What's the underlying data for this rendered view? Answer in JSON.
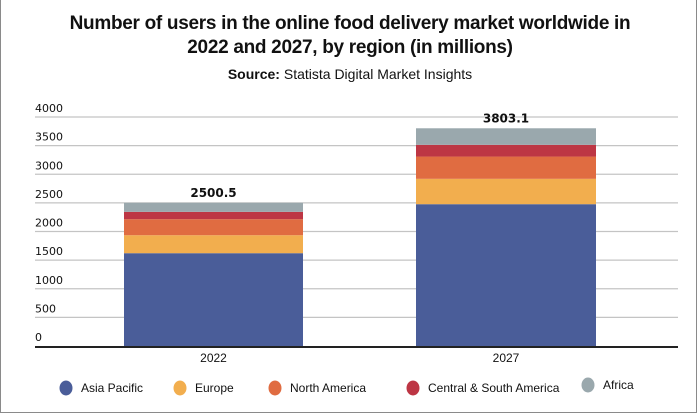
{
  "chart_data": {
    "type": "bar",
    "stacked": true,
    "title": "Number of users in the online food delivery market worldwide in 2022 and 2027, by region (in millions)",
    "title_lines": [
      "Number of users in the online food delivery market worldwide in",
      "2022 and 2027, by region (in millions)"
    ],
    "subtitle_prefix": "Source:",
    "subtitle_text": " Statista Digital Market Insights",
    "categories": [
      "2022",
      "2027"
    ],
    "totals": [
      "2500.5",
      "3803.1"
    ],
    "series": [
      {
        "name": "Asia Pacific",
        "color": "#4a5d99",
        "values": [
          1621,
          2477
        ]
      },
      {
        "name": "Europe",
        "color": "#f2ae4e",
        "values": [
          314,
          443
        ]
      },
      {
        "name": "North America",
        "color": "#e06c41",
        "values": [
          280,
          389
        ]
      },
      {
        "name": "Central & South America",
        "color": "#bd3644",
        "values": [
          128,
          205
        ]
      },
      {
        "name": "Africa",
        "color": "#9aa8ad",
        "values": [
          158,
          289
        ]
      }
    ],
    "yticks": [
      0,
      500,
      1000,
      1500,
      2000,
      2500,
      3000,
      3500,
      4000
    ],
    "ylim": [
      0,
      4000
    ],
    "xlabel": "",
    "ylabel": "",
    "grid": true,
    "legend_position": "bottom"
  }
}
